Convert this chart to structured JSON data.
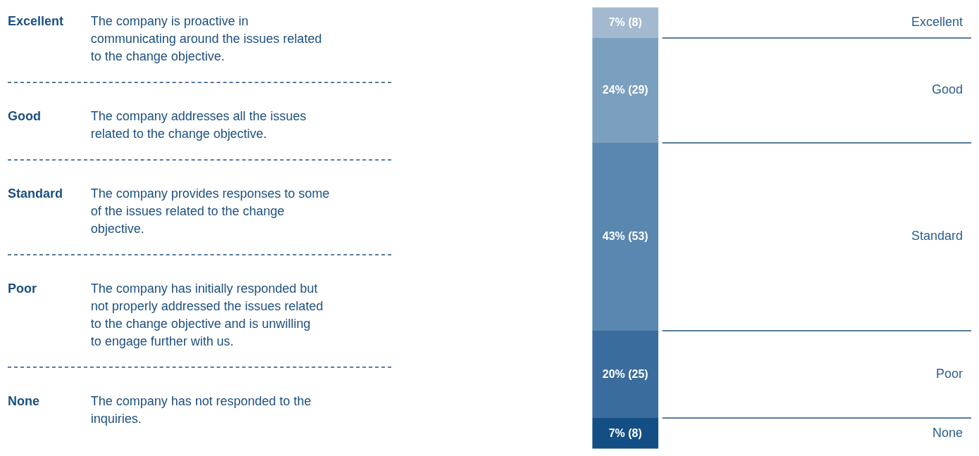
{
  "chart_data": {
    "type": "bar",
    "stacked": true,
    "categories": [
      null
    ],
    "series": [
      {
        "name": "None",
        "color": "#134f85",
        "values": [
          7
        ],
        "value_labels": [
          "7% (8)"
        ]
      },
      {
        "name": "Poor",
        "color": "#3a6c9d",
        "values": [
          20
        ],
        "value_labels": [
          "20% (25)"
        ]
      },
      {
        "name": "Standard",
        "color": "#5a87b0",
        "values": [
          43
        ],
        "value_labels": [
          "43% (53)"
        ]
      },
      {
        "name": "Good",
        "color": "#7b9fbe",
        "values": [
          24
        ],
        "value_labels": [
          "24% (29)"
        ]
      },
      {
        "name": "Excellent",
        "color": "#a3b9d0",
        "values": [
          7
        ],
        "value_labels": [
          "7% (8)"
        ]
      }
    ],
    "annotations": [
      "Excellent",
      "The company is proactive in\ncommunicating around the issues related\nto the change objective.",
      "Good",
      "The company addresses all the issues\nrelated to the change objective.",
      "Standard",
      "The company provides responses to some\nof the issues related to the change\nobjective.",
      "Poor",
      "The company has initially responded but\nnot properly addressed the issues related\nto the change objective and is unwilling\nto engage further with us.",
      "None",
      "The company has not responded to the\ninquiries."
    ]
  }
}
